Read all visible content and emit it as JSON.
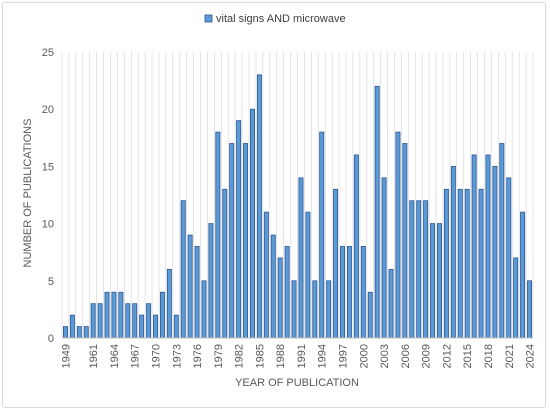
{
  "chart_data": {
    "type": "bar",
    "legend": {
      "placement": "top-center",
      "entries": [
        "vital signs AND microwave"
      ]
    },
    "xlabel": "YEAR OF PUBLICATION",
    "ylabel": "NUMBER OF PUBLICATIONS",
    "ylim": [
      0,
      25
    ],
    "yticks": [
      0,
      5,
      10,
      15,
      20,
      25
    ],
    "grid": "vertical",
    "colors": {
      "bar_fill": "#5b9bd5",
      "bar_stroke": "#2f5597",
      "grid": "#d9d9d9",
      "axis": "#bfbfbf"
    },
    "xtick_labels": [
      "1949",
      "1961",
      "1964",
      "1967",
      "1970",
      "1973",
      "1976",
      "1979",
      "1982",
      "1985",
      "1988",
      "1991",
      "1994",
      "1997",
      "2000",
      "2003",
      "2006",
      "2009",
      "2012",
      "2015",
      "2018",
      "2021",
      "2024"
    ],
    "series": [
      {
        "name": "vital signs AND microwave",
        "values": [
          1,
          2,
          1,
          1,
          3,
          3,
          4,
          4,
          4,
          3,
          3,
          2,
          3,
          2,
          4,
          6,
          2,
          12,
          9,
          8,
          5,
          10,
          18,
          13,
          17,
          19,
          17,
          20,
          23,
          11,
          9,
          7,
          8,
          5,
          14,
          11,
          5,
          18,
          5,
          13,
          8,
          8,
          16,
          8,
          4,
          22,
          14,
          6,
          18,
          17,
          12,
          12,
          12,
          10,
          10,
          13,
          15,
          13,
          13,
          16,
          13,
          16,
          15,
          17,
          14,
          7,
          11,
          5
        ]
      }
    ]
  }
}
